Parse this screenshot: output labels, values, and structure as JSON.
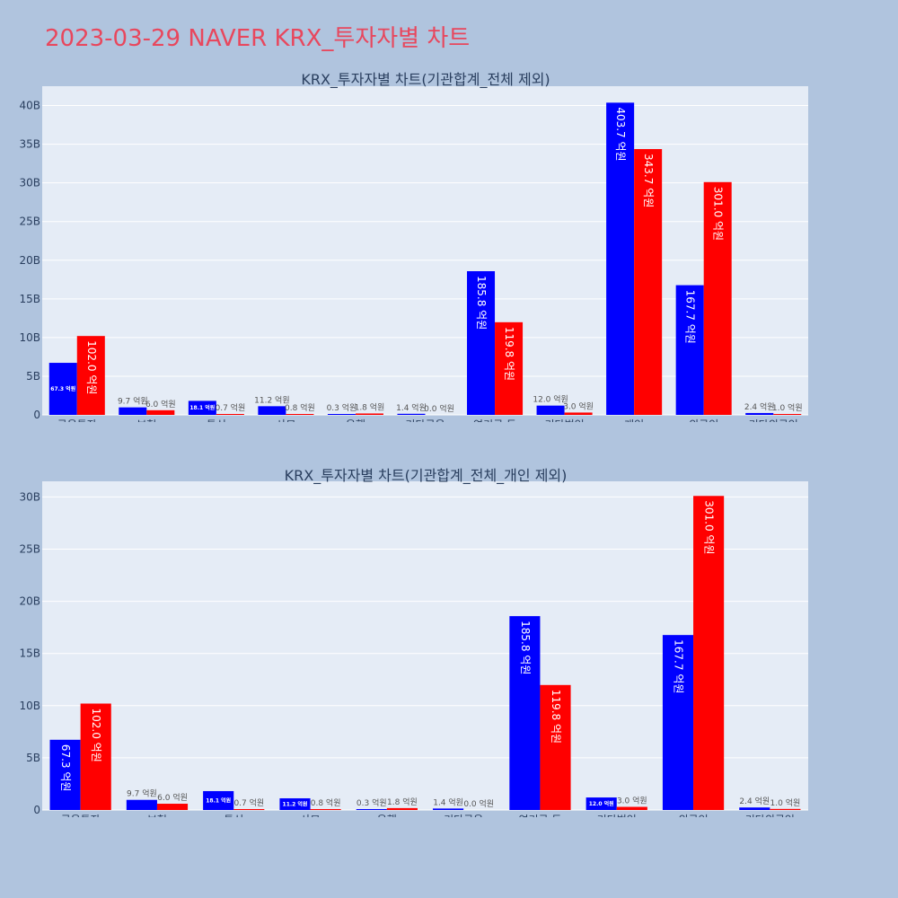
{
  "page": {
    "title": "2023-03-29 NAVER KRX_투자자별 차트"
  },
  "colors": {
    "buy": "#0000ff",
    "sell": "#ff0000",
    "title": "#e8475d"
  },
  "chart_data": [
    {
      "type": "bar",
      "title": "KRX_투자자별 차트(기관합계_전체 제외)",
      "categories": [
        "금융투자",
        "보험",
        "투신",
        "사모",
        "은행",
        "기타금융",
        "연기금 등",
        "기타법인",
        "개인",
        "외국인",
        "기타외국인"
      ],
      "series": [
        {
          "color": "#0000ff",
          "values": [
            6.73,
            0.97,
            1.81,
            1.12,
            0.03,
            0.14,
            18.58,
            1.2,
            40.37,
            16.77,
            0.24
          ],
          "labels": [
            "67.3 억원",
            "9.7 억원",
            "18.1 억원",
            "11.2 억원",
            "0.3 억원",
            "1.4 억원",
            "185.8 억원",
            "12.0 억원",
            "403.7 억원",
            "167.7 억원",
            "2.4 억원"
          ]
        },
        {
          "color": "#ff0000",
          "values": [
            10.2,
            0.6,
            0.07,
            0.08,
            0.18,
            0.0,
            11.98,
            0.3,
            34.37,
            30.1,
            0.1
          ],
          "labels": [
            "102.0 억원",
            "6.0 억원",
            "0.7 억원",
            "0.8 억원",
            "1.8 억원",
            "0.0 억원",
            "119.8 억원",
            "3.0 억원",
            "343.7 억원",
            "301.0 억원",
            "1.0 억원"
          ]
        }
      ],
      "yticks": [
        0,
        5,
        10,
        15,
        20,
        25,
        30,
        35,
        40
      ],
      "ytick_labels": [
        "0",
        "5B",
        "10B",
        "15B",
        "20B",
        "25B",
        "30B",
        "35B",
        "40B"
      ],
      "ylim": [
        0,
        42.5
      ],
      "grid": true
    },
    {
      "type": "bar",
      "title": "KRX_투자자별 차트(기관합계_전체_개인 제외)",
      "categories": [
        "금융투자",
        "보험",
        "투신",
        "사모",
        "은행",
        "기타금융",
        "연기금 등",
        "기타법인",
        "외국인",
        "기타외국인"
      ],
      "series": [
        {
          "color": "#0000ff",
          "values": [
            6.73,
            0.97,
            1.81,
            1.12,
            0.03,
            0.14,
            18.58,
            1.2,
            16.77,
            0.24
          ],
          "labels": [
            "67.3 억원",
            "9.7 억원",
            "18.1 억원",
            "11.2 억원",
            "0.3 억원",
            "1.4 억원",
            "185.8 억원",
            "12.0 억원",
            "167.7 억원",
            "2.4 억원"
          ]
        },
        {
          "color": "#ff0000",
          "values": [
            10.2,
            0.6,
            0.07,
            0.08,
            0.18,
            0.0,
            11.98,
            0.3,
            30.1,
            0.1
          ],
          "labels": [
            "102.0 억원",
            "6.0 억원",
            "0.7 억원",
            "0.8 억원",
            "1.8 억원",
            "0.0 억원",
            "119.8 억원",
            "3.0 억원",
            "301.0 억원",
            "1.0 억원"
          ]
        }
      ],
      "yticks": [
        0,
        5,
        10,
        15,
        20,
        25,
        30
      ],
      "ytick_labels": [
        "0",
        "5B",
        "10B",
        "15B",
        "20B",
        "25B",
        "30B"
      ],
      "ylim": [
        0,
        31.5
      ],
      "grid": true
    }
  ]
}
